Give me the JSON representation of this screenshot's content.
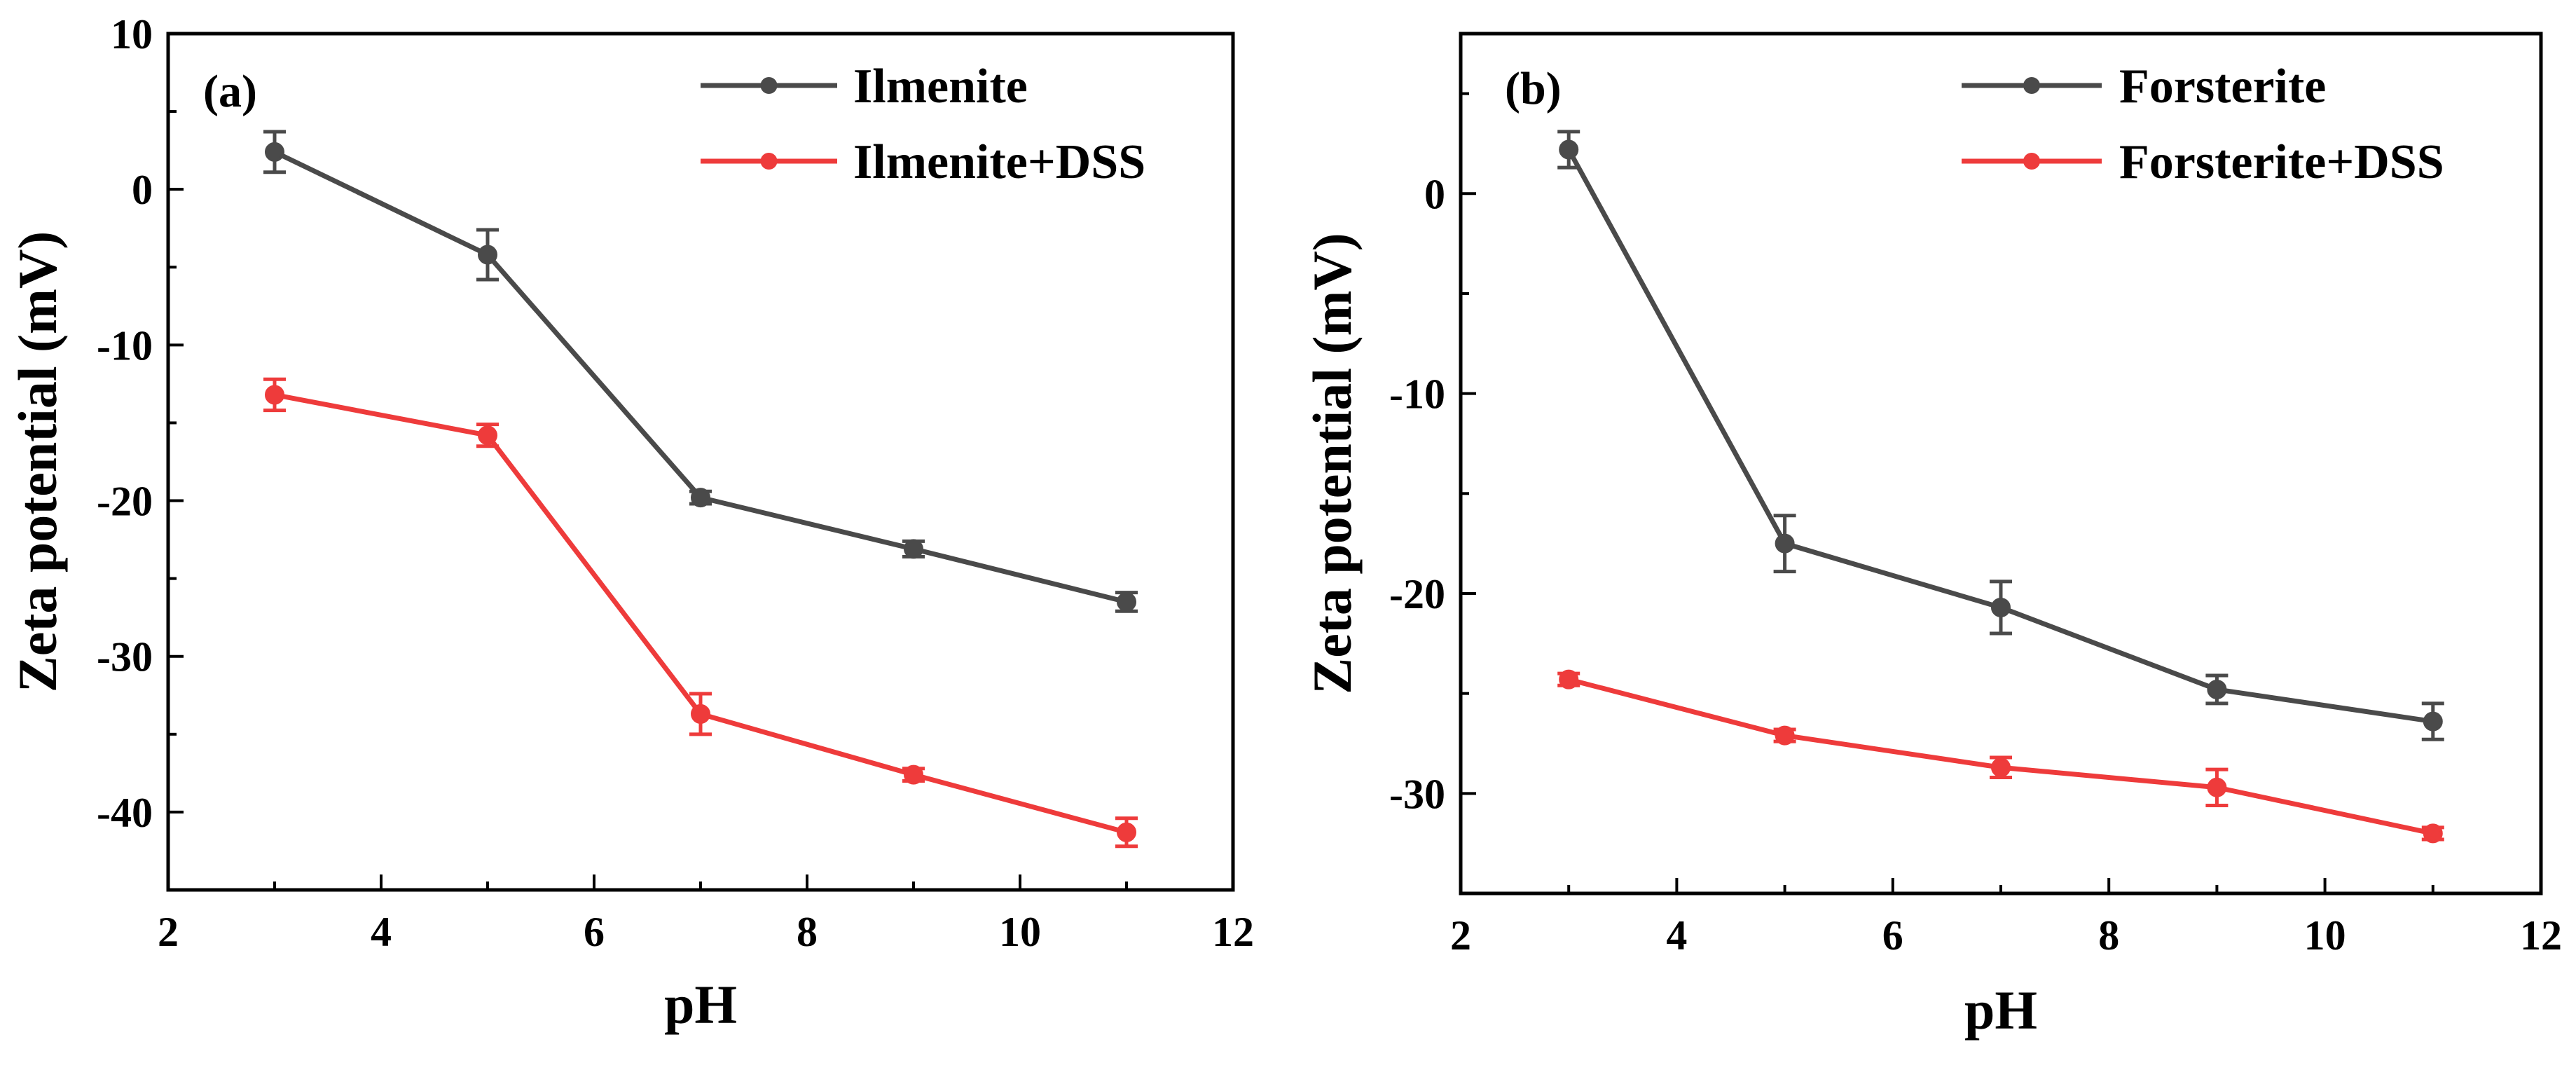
{
  "colors": {
    "background": "#ffffff",
    "axis": "#000000",
    "series_dark": "#4a4a4a",
    "series_red": "#ee3b3b"
  },
  "chart_data": [
    {
      "type": "line",
      "panel_label": "(a)",
      "xlabel": "pH",
      "ylabel": "Zeta potential (mV)",
      "xlim": [
        2,
        12
      ],
      "ylim": [
        -45,
        10
      ],
      "xticks": [
        2,
        4,
        6,
        8,
        10,
        12
      ],
      "yticks": [
        -40,
        -30,
        -20,
        -10,
        0,
        10
      ],
      "legend_position": "top-right",
      "grid": false,
      "series": [
        {
          "name": "Ilmenite",
          "color": "#4a4a4a",
          "x": [
            3,
            5,
            7,
            9,
            11
          ],
          "y": [
            2.4,
            -4.2,
            -19.8,
            -23.1,
            -26.5
          ],
          "error": [
            1.3,
            1.6,
            0.4,
            0.5,
            0.6
          ]
        },
        {
          "name": "Ilmenite+DSS",
          "color": "#ee3b3b",
          "x": [
            3,
            5,
            7,
            9,
            11
          ],
          "y": [
            -13.2,
            -15.8,
            -33.7,
            -37.6,
            -41.3
          ],
          "error": [
            1.0,
            0.7,
            1.3,
            0.4,
            0.9
          ]
        }
      ]
    },
    {
      "type": "line",
      "panel_label": "(b)",
      "xlabel": "pH",
      "ylabel": "Zeta potential (mV)",
      "xlim": [
        2,
        12
      ],
      "ylim": [
        -35,
        8
      ],
      "xticks": [
        2,
        4,
        6,
        8,
        10,
        12
      ],
      "yticks": [
        -30,
        -20,
        -10,
        0
      ],
      "legend_position": "top-right",
      "grid": false,
      "series": [
        {
          "name": "Forsterite",
          "color": "#4a4a4a",
          "x": [
            3,
            5,
            7,
            9,
            11
          ],
          "y": [
            2.2,
            -17.5,
            -20.7,
            -24.8,
            -26.4
          ],
          "error": [
            0.9,
            1.4,
            1.3,
            0.7,
            0.9
          ]
        },
        {
          "name": "Forsterite+DSS",
          "color": "#ee3b3b",
          "x": [
            3,
            5,
            7,
            9,
            11
          ],
          "y": [
            -24.3,
            -27.1,
            -28.7,
            -29.7,
            -32.0
          ],
          "error": [
            0.3,
            0.3,
            0.5,
            0.9,
            0.3
          ]
        }
      ]
    }
  ]
}
